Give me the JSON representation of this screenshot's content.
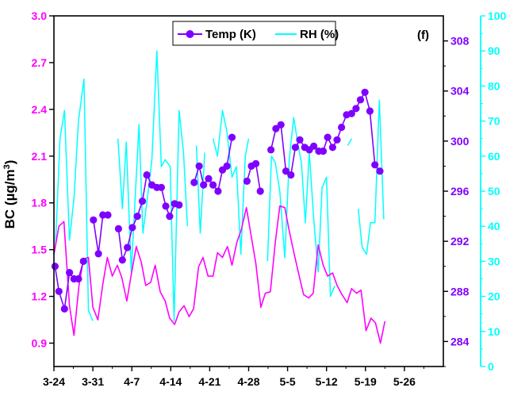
{
  "chart_data": {
    "type": "line",
    "panel_label": "(f)",
    "x": {
      "tick_labels": [
        "3-24",
        "3-31",
        "4-7",
        "4-14",
        "4-21",
        "4-28",
        "5-5",
        "5-12",
        "5-19",
        "5-26"
      ],
      "range_days": [
        0,
        70
      ]
    },
    "axes": {
      "left": {
        "label": "BC (µg/m³)",
        "label_main": "BC (µg/m",
        "label_sup": "3",
        "label_tail": ")",
        "range": [
          0.75,
          3.0
        ],
        "ticks": [
          0.9,
          1.2,
          1.5,
          1.8,
          2.1,
          2.4,
          2.7,
          3.0
        ],
        "tick_labels": [
          "0.9",
          "1.2",
          "1.5",
          "1.8",
          "2.1",
          "2.4",
          "2.7",
          "3.0"
        ],
        "color": "#ff00ff"
      },
      "right_temp": {
        "label": "",
        "range": [
          282,
          310
        ],
        "ticks": [
          284,
          288,
          292,
          296,
          300,
          304,
          308
        ],
        "tick_labels": [
          "284",
          "288",
          "292",
          "296",
          "300",
          "304",
          "308"
        ],
        "color": "#8000ff"
      },
      "right_rh": {
        "label": "",
        "range": [
          0,
          100
        ],
        "ticks": [
          0,
          10,
          20,
          30,
          40,
          50,
          60,
          70,
          80,
          90,
          100
        ],
        "tick_labels": [
          "0",
          "10",
          "20",
          "30",
          "40",
          "50",
          "60",
          "70",
          "80",
          "90",
          "100"
        ],
        "color": "#00ffff"
      }
    },
    "legend": {
      "position": "top-center",
      "entries": [
        "Temp (K)",
        "RH (%)"
      ]
    },
    "series": [
      {
        "name": "BC",
        "axis": "left",
        "color": "#ff00ff",
        "points": [
          [
            0,
            1.47
          ],
          [
            0.9,
            1.65
          ],
          [
            1.8,
            1.68
          ],
          [
            2.8,
            1.14
          ],
          [
            3.6,
            0.95
          ],
          [
            4.5,
            1.27
          ],
          [
            5.3,
            1.44
          ],
          [
            6.2,
            1.45
          ],
          [
            7.0,
            1.13
          ],
          [
            7.9,
            1.05
          ],
          [
            8.8,
            1.28
          ],
          [
            9.6,
            1.45
          ],
          [
            10.5,
            1.33
          ],
          [
            11.4,
            1.4
          ],
          [
            12.2,
            1.32
          ],
          [
            13.1,
            1.17
          ],
          [
            13.9,
            1.34
          ],
          [
            14.8,
            1.52
          ],
          [
            15.7,
            1.42
          ],
          [
            16.5,
            1.27
          ],
          [
            17.4,
            1.29
          ],
          [
            18.2,
            1.4
          ],
          [
            19.1,
            1.23
          ],
          [
            20.0,
            1.17
          ],
          [
            20.8,
            1.06
          ],
          [
            21.7,
            1.02
          ],
          [
            22.5,
            1.1
          ],
          [
            23.4,
            1.14
          ],
          [
            24.3,
            1.07
          ],
          [
            25.1,
            1.12
          ],
          [
            26.0,
            1.39
          ],
          [
            26.8,
            1.45
          ],
          [
            27.7,
            1.33
          ],
          [
            28.6,
            1.33
          ],
          [
            29.4,
            1.48
          ],
          [
            30.3,
            1.45
          ],
          [
            31.2,
            1.52
          ],
          [
            32.0,
            1.4
          ],
          [
            32.9,
            1.55
          ],
          [
            33.7,
            1.63
          ],
          [
            34.6,
            1.77
          ],
          [
            35.5,
            1.58
          ],
          [
            36.3,
            1.41
          ],
          [
            37.2,
            1.13
          ],
          [
            38.0,
            1.22
          ],
          [
            38.9,
            1.23
          ],
          [
            39.8,
            1.55
          ],
          [
            40.6,
            1.78
          ],
          [
            41.5,
            1.77
          ],
          [
            42.3,
            1.62
          ],
          [
            43.2,
            1.47
          ],
          [
            44.1,
            1.33
          ],
          [
            44.9,
            1.21
          ],
          [
            45.8,
            1.19
          ],
          [
            46.6,
            1.22
          ],
          [
            47.5,
            1.53
          ],
          [
            48.4,
            1.4
          ],
          [
            49.2,
            1.33
          ],
          [
            50.1,
            1.35
          ],
          [
            50.9,
            1.27
          ],
          [
            51.8,
            1.21
          ],
          [
            52.7,
            1.16
          ],
          [
            53.5,
            1.25
          ],
          [
            54.4,
            1.22
          ],
          [
            55.2,
            1.24
          ],
          [
            56.1,
            0.98
          ],
          [
            57.0,
            1.06
          ],
          [
            57.8,
            1.03
          ],
          [
            58.7,
            0.9
          ],
          [
            59.5,
            1.04
          ]
        ]
      },
      {
        "name": "Temp (K)",
        "axis": "right_temp",
        "color": "#8000ff",
        "points": [
          [
            0.2,
            290.0
          ],
          [
            0.9,
            288.0
          ],
          [
            1.9,
            286.6
          ],
          [
            2.8,
            289.5
          ],
          [
            3.6,
            289.0
          ],
          [
            4.4,
            289.0
          ],
          [
            5.3,
            290.4
          ],
          [
            6.0,
            null
          ],
          [
            7.1,
            293.7
          ],
          [
            8.0,
            291.0
          ],
          [
            8.8,
            294.1
          ],
          [
            9.7,
            294.1
          ],
          [
            10.5,
            null
          ],
          [
            11.6,
            293.0
          ],
          [
            12.3,
            290.5
          ],
          [
            13.2,
            291.5
          ],
          [
            14.1,
            293.1
          ],
          [
            15.0,
            294.0
          ],
          [
            15.9,
            295.2
          ],
          [
            16.7,
            297.3
          ],
          [
            17.6,
            296.5
          ],
          [
            18.5,
            296.3
          ],
          [
            19.3,
            296.3
          ],
          [
            20.1,
            294.8
          ],
          [
            20.8,
            294.0
          ],
          [
            21.7,
            295.0
          ],
          [
            22.5,
            294.9
          ],
          [
            23.3,
            null
          ],
          [
            25.2,
            296.7
          ],
          [
            26.1,
            298.0
          ],
          [
            26.9,
            296.5
          ],
          [
            27.8,
            297.0
          ],
          [
            28.6,
            296.5
          ],
          [
            29.5,
            296.0
          ],
          [
            30.3,
            297.7
          ],
          [
            31.1,
            298.0
          ],
          [
            32.0,
            300.3
          ],
          [
            32.8,
            null
          ],
          [
            34.7,
            296.8
          ],
          [
            35.5,
            298.0
          ],
          [
            36.3,
            298.2
          ],
          [
            37.1,
            296.0
          ],
          [
            37.9,
            null
          ],
          [
            39.0,
            299.3
          ],
          [
            39.9,
            301.0
          ],
          [
            40.8,
            301.3
          ],
          [
            41.7,
            297.6
          ],
          [
            42.6,
            297.3
          ],
          [
            43.4,
            299.5
          ],
          [
            44.2,
            300.1
          ],
          [
            45.1,
            299.5
          ],
          [
            45.9,
            299.3
          ],
          [
            46.7,
            299.6
          ],
          [
            47.6,
            299.2
          ],
          [
            48.4,
            299.2
          ],
          [
            49.2,
            300.3
          ],
          [
            50.1,
            299.5
          ],
          [
            50.9,
            300.1
          ],
          [
            51.7,
            301.1
          ],
          [
            52.6,
            302.1
          ],
          [
            53.5,
            302.2
          ],
          [
            54.3,
            302.6
          ],
          [
            55.1,
            303.3
          ],
          [
            55.9,
            303.9
          ],
          [
            56.8,
            302.4
          ],
          [
            57.7,
            298.1
          ],
          [
            58.6,
            297.6
          ]
        ]
      },
      {
        "name": "RH (%)",
        "axis": "right_rh",
        "color": "#00ffff",
        "points": [
          [
            0.3,
            35
          ],
          [
            1.1,
            65
          ],
          [
            1.9,
            73
          ],
          [
            2.8,
            36
          ],
          [
            3.6,
            48
          ],
          [
            4.4,
            70
          ],
          [
            5.4,
            82
          ],
          [
            6.2,
            16
          ],
          [
            7.0,
            13
          ],
          [
            7.9,
            null
          ],
          [
            11.5,
            65
          ],
          [
            12.3,
            45
          ],
          [
            13.0,
            64
          ],
          [
            13.9,
            27
          ],
          [
            14.6,
            48
          ],
          [
            15.3,
            69
          ],
          [
            16.0,
            38
          ],
          [
            16.8,
            48
          ],
          [
            17.6,
            59
          ],
          [
            18.5,
            90
          ],
          [
            19.3,
            57
          ],
          [
            20.0,
            59
          ],
          [
            20.9,
            57
          ],
          [
            21.6,
            13
          ],
          [
            22.5,
            73
          ],
          [
            23.3,
            61
          ],
          [
            24.0,
            40
          ],
          [
            24.3,
            null
          ],
          [
            25.6,
            63
          ],
          [
            26.3,
            38
          ],
          [
            27.1,
            61
          ],
          [
            27.9,
            null
          ],
          [
            28.6,
            65
          ],
          [
            29.4,
            60
          ],
          [
            30.3,
            73
          ],
          [
            31.1,
            67
          ],
          [
            32.0,
            54
          ],
          [
            32.8,
            57
          ],
          [
            33.6,
            32
          ],
          [
            34.4,
            60
          ],
          [
            35.0,
            65
          ],
          [
            35.8,
            null
          ],
          [
            37.1,
            54
          ],
          [
            37.7,
            null
          ],
          [
            38.4,
            30
          ],
          [
            39.1,
            60
          ],
          [
            39.8,
            58
          ],
          [
            40.6,
            50
          ],
          [
            41.5,
            31
          ],
          [
            42.3,
            59
          ],
          [
            43.1,
            71
          ],
          [
            43.8,
            64
          ],
          [
            44.5,
            58
          ],
          [
            45.2,
            41
          ],
          [
            45.9,
            61
          ],
          [
            46.7,
            42
          ],
          [
            47.5,
            27
          ],
          [
            48.2,
            51
          ],
          [
            49.0,
            54
          ],
          [
            49.7,
            20
          ],
          [
            50.5,
            23
          ],
          [
            51.0,
            null
          ],
          [
            52.8,
            63
          ],
          [
            53.5,
            65
          ],
          [
            54.0,
            null
          ],
          [
            54.7,
            45
          ],
          [
            55.4,
            34
          ],
          [
            56.2,
            32
          ],
          [
            56.9,
            41
          ],
          [
            57.7,
            41
          ],
          [
            58.5,
            76
          ],
          [
            59.3,
            42
          ]
        ]
      }
    ]
  }
}
